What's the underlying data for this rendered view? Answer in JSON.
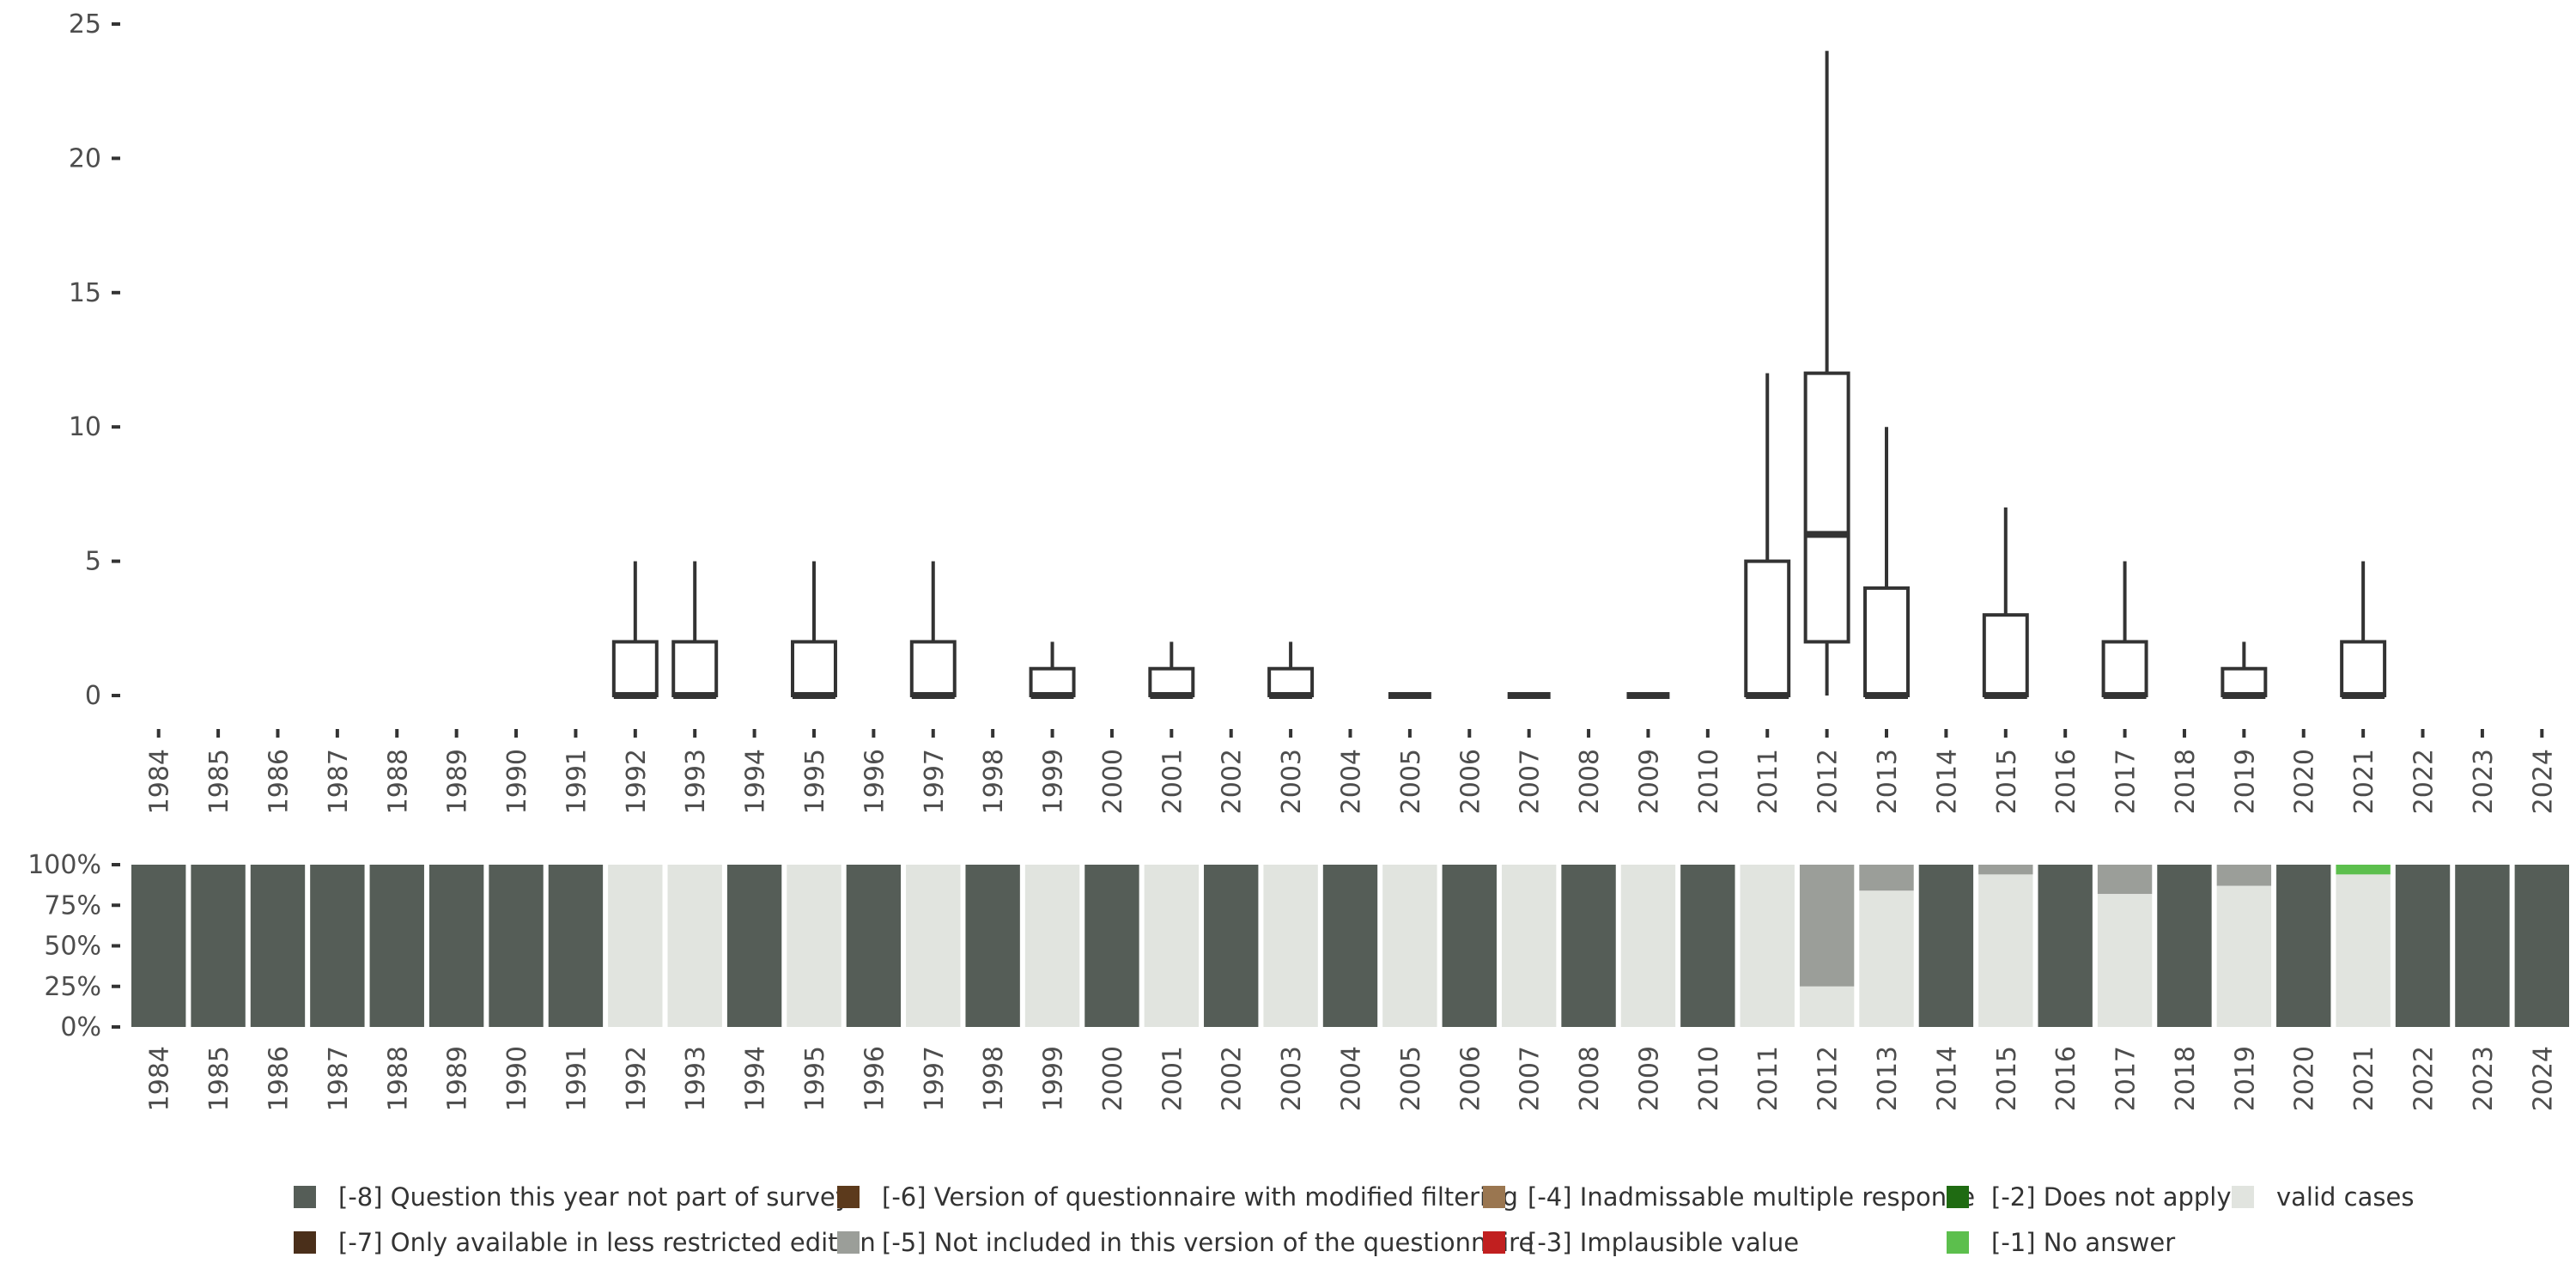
{
  "chart_data": [
    {
      "type": "boxplot",
      "title": "",
      "xlabel": "",
      "ylabel": "",
      "ylim": [
        0,
        25
      ],
      "y_ticks": [
        "0",
        "5",
        "10",
        "15",
        "20",
        "25"
      ],
      "y_tick_values": [
        0,
        5,
        10,
        15,
        20,
        25
      ],
      "categories": [
        "1984",
        "1985",
        "1986",
        "1987",
        "1988",
        "1989",
        "1990",
        "1991",
        "1992",
        "1993",
        "1994",
        "1995",
        "1996",
        "1997",
        "1998",
        "1999",
        "2000",
        "2001",
        "2002",
        "2003",
        "2004",
        "2005",
        "2006",
        "2007",
        "2008",
        "2009",
        "2010",
        "2011",
        "2012",
        "2013",
        "2014",
        "2015",
        "2016",
        "2017",
        "2018",
        "2019",
        "2020",
        "2021",
        "2022",
        "2023",
        "2024"
      ],
      "boxes": [
        {
          "year": "1992",
          "min": 0,
          "q1": 0,
          "median": 0,
          "q3": 2,
          "max": 5
        },
        {
          "year": "1993",
          "min": 0,
          "q1": 0,
          "median": 0,
          "q3": 2,
          "max": 5
        },
        {
          "year": "1995",
          "min": 0,
          "q1": 0,
          "median": 0,
          "q3": 2,
          "max": 5
        },
        {
          "year": "1997",
          "min": 0,
          "q1": 0,
          "median": 0,
          "q3": 2,
          "max": 5
        },
        {
          "year": "1999",
          "min": 0,
          "q1": 0,
          "median": 0,
          "q3": 1,
          "max": 2
        },
        {
          "year": "2001",
          "min": 0,
          "q1": 0,
          "median": 0,
          "q3": 1,
          "max": 2
        },
        {
          "year": "2003",
          "min": 0,
          "q1": 0,
          "median": 0,
          "q3": 1,
          "max": 2
        },
        {
          "year": "2005",
          "min": 0,
          "q1": 0,
          "median": 0,
          "q3": 0,
          "max": 0
        },
        {
          "year": "2007",
          "min": 0,
          "q1": 0,
          "median": 0,
          "q3": 0,
          "max": 0
        },
        {
          "year": "2009",
          "min": 0,
          "q1": 0,
          "median": 0,
          "q3": 0,
          "max": 0
        },
        {
          "year": "2011",
          "min": 0,
          "q1": 0,
          "median": 0,
          "q3": 5,
          "max": 12
        },
        {
          "year": "2012",
          "min": 0,
          "q1": 2,
          "median": 6,
          "q3": 12,
          "max": 24
        },
        {
          "year": "2013",
          "min": 0,
          "q1": 0,
          "median": 0,
          "q3": 4,
          "max": 10
        },
        {
          "year": "2015",
          "min": 0,
          "q1": 0,
          "median": 0,
          "q3": 3,
          "max": 7
        },
        {
          "year": "2017",
          "min": 0,
          "q1": 0,
          "median": 0,
          "q3": 2,
          "max": 5
        },
        {
          "year": "2019",
          "min": 0,
          "q1": 0,
          "median": 0,
          "q3": 1,
          "max": 2
        },
        {
          "year": "2021",
          "min": 0,
          "q1": 0,
          "median": 0,
          "q3": 2,
          "max": 5
        }
      ]
    },
    {
      "type": "stacked-bar",
      "title": "",
      "xlabel": "",
      "ylabel": "",
      "ylim": [
        0,
        100
      ],
      "y_ticks": [
        "0%",
        "25%",
        "50%",
        "75%",
        "100%"
      ],
      "y_tick_values": [
        0,
        25,
        50,
        75,
        100
      ],
      "categories": [
        "1984",
        "1985",
        "1986",
        "1987",
        "1988",
        "1989",
        "1990",
        "1991",
        "1992",
        "1993",
        "1994",
        "1995",
        "1996",
        "1997",
        "1998",
        "1999",
        "2000",
        "2001",
        "2002",
        "2003",
        "2004",
        "2005",
        "2006",
        "2007",
        "2008",
        "2009",
        "2010",
        "2011",
        "2012",
        "2013",
        "2014",
        "2015",
        "2016",
        "2017",
        "2018",
        "2019",
        "2020",
        "2021",
        "2022",
        "2023",
        "2024"
      ],
      "series": [
        {
          "name": "valid cases",
          "color": "#e1e4df",
          "values": [
            0,
            0,
            0,
            0,
            0,
            0,
            0,
            0,
            100,
            100,
            0,
            100,
            0,
            100,
            0,
            100,
            0,
            100,
            0,
            100,
            0,
            100,
            0,
            100,
            0,
            100,
            0,
            100,
            25,
            84,
            0,
            94,
            0,
            82,
            0,
            87,
            0,
            94,
            0,
            0,
            0
          ]
        },
        {
          "name": "[-1] No answer",
          "color": "#5cbf4d",
          "values": [
            0,
            0,
            0,
            0,
            0,
            0,
            0,
            0,
            0,
            0,
            0,
            0,
            0,
            0,
            0,
            0,
            0,
            0,
            0,
            0,
            0,
            0,
            0,
            0,
            0,
            0,
            0,
            0,
            0,
            0,
            0,
            0,
            0,
            0,
            0,
            0,
            0,
            6,
            0,
            0,
            0
          ]
        },
        {
          "name": "[-5] Not included in this version of the questionnaire",
          "color": "#9b9e99",
          "values": [
            0,
            0,
            0,
            0,
            0,
            0,
            0,
            0,
            0,
            0,
            0,
            0,
            0,
            0,
            0,
            0,
            0,
            0,
            0,
            0,
            0,
            0,
            0,
            0,
            0,
            0,
            0,
            0,
            75,
            16,
            0,
            6,
            0,
            18,
            0,
            13,
            0,
            0,
            0,
            0,
            0
          ]
        },
        {
          "name": "[-8] Question this year not part of survey",
          "color": "#555d57",
          "values": [
            100,
            100,
            100,
            100,
            100,
            100,
            100,
            100,
            0,
            0,
            100,
            0,
            100,
            0,
            100,
            0,
            100,
            0,
            100,
            0,
            100,
            0,
            100,
            0,
            100,
            0,
            100,
            0,
            0,
            0,
            100,
            0,
            100,
            0,
            100,
            0,
            100,
            0,
            100,
            100,
            100
          ]
        }
      ]
    }
  ],
  "legend": [
    {
      "label": "[-8] Question this year not part of survey",
      "color": "#555d57"
    },
    {
      "label": "[-7] Only available in less restricted edition",
      "color": "#4a2f1a"
    },
    {
      "label": "[-6] Version of questionnaire with modified filtering",
      "color": "#5c3a1c"
    },
    {
      "label": "[-5] Not included in this version of the questionnaire",
      "color": "#9b9e99"
    },
    {
      "label": "[-4] Inadmissable multiple response",
      "color": "#9a7650"
    },
    {
      "label": "[-3] Implausible value",
      "color": "#c11f1f"
    },
    {
      "label": "[-2] Does not apply",
      "color": "#1f6b12"
    },
    {
      "label": "[-1] No answer",
      "color": "#5cbf4d"
    },
    {
      "label": "valid cases",
      "color": "#e1e4df"
    }
  ]
}
